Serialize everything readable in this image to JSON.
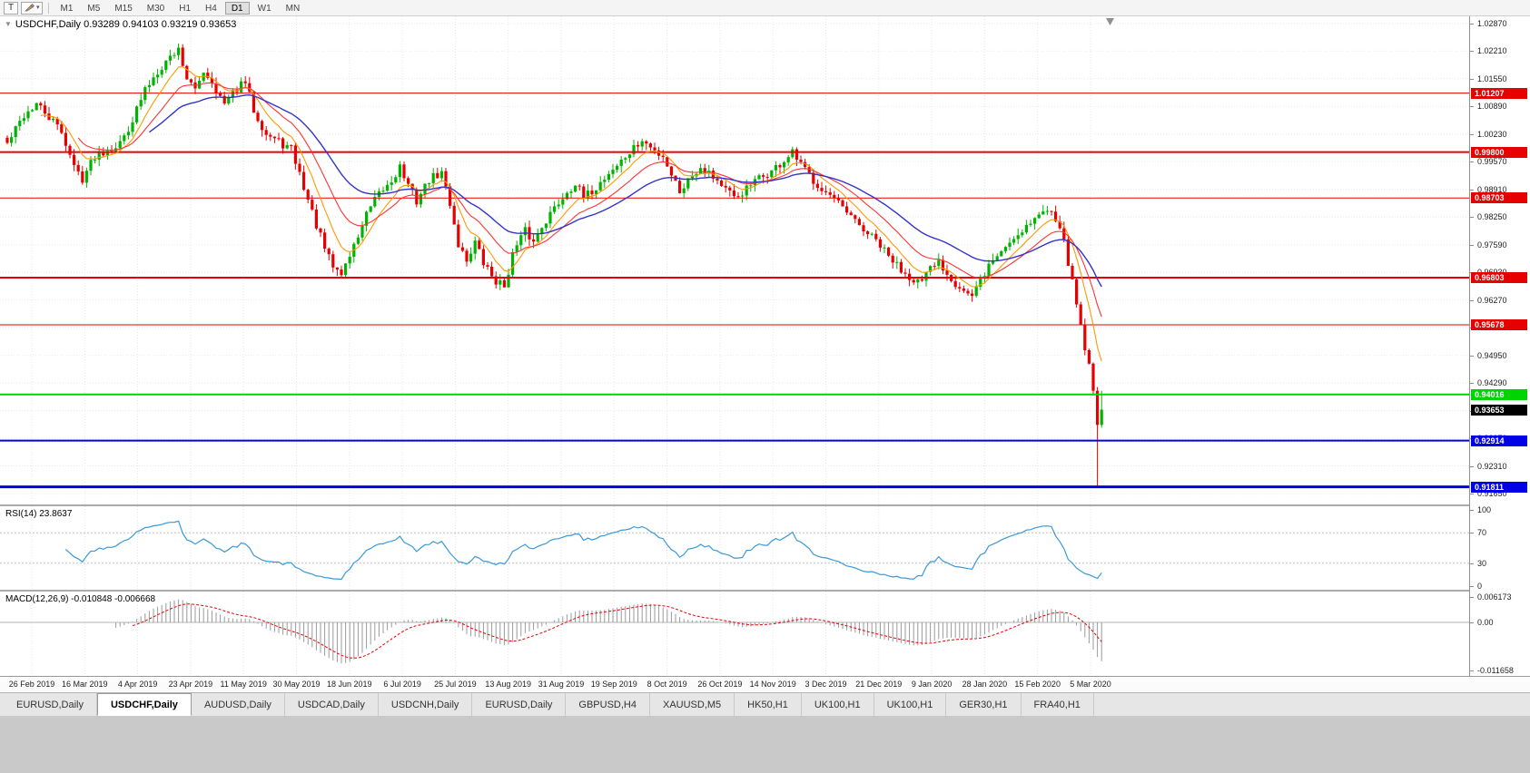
{
  "toolbar": {
    "text_tool": "T",
    "timeframes": [
      "M1",
      "M5",
      "M15",
      "M30",
      "H1",
      "H4",
      "D1",
      "W1",
      "MN"
    ],
    "active_timeframe": "D1"
  },
  "chart": {
    "collapse_arrow": "▼",
    "symbol": "USDCHF",
    "period": "Daily",
    "title_full": "USDCHF,Daily 0.93289 0.94103 0.93219 0.93653",
    "ohlc": {
      "open": "0.93289",
      "high": "0.94103",
      "low": "0.93219",
      "close": "0.93653"
    }
  },
  "chart_data": {
    "type": "candlestick",
    "symbol": "USDCHF",
    "timeframe": "Daily",
    "visible_price_range": {
      "min": 0.9139,
      "max": 1.0304
    },
    "price_axis_ticks": [
      "1.02870",
      "1.02210",
      "1.01550",
      "1.00890",
      "1.00230",
      "0.99570",
      "0.98910",
      "0.98250",
      "0.97590",
      "0.96930",
      "0.96270",
      "0.95610",
      "0.94950",
      "0.94290",
      "0.93630",
      "0.92970",
      "0.92310",
      "0.91650"
    ],
    "date_labels": [
      "26 Feb 2019",
      "16 Mar 2019",
      "4 Apr 2019",
      "23 Apr 2019",
      "11 May 2019",
      "30 May 2019",
      "18 Jun 2019",
      "6 Jul 2019",
      "25 Jul 2019",
      "13 Aug 2019",
      "31 Aug 2019",
      "19 Sep 2019",
      "8 Oct 2019",
      "26 Oct 2019",
      "14 Nov 2019",
      "3 Dec 2019",
      "21 Dec 2019",
      "9 Jan 2020",
      "28 Jan 2020",
      "15 Feb 2020",
      "5 Mar 2020"
    ],
    "num_candles": 263,
    "last_candle": {
      "open": 0.93289,
      "high": 0.94103,
      "low": 0.93219,
      "close": 0.93653
    },
    "crash_low": 0.91811,
    "close_waypoints": [
      [
        0,
        1.0
      ],
      [
        4,
        1.0068
      ],
      [
        7,
        1.0094
      ],
      [
        10,
        1.0062
      ],
      [
        13,
        1.003
      ],
      [
        16,
        0.9945
      ],
      [
        18,
        0.9918
      ],
      [
        21,
        0.9972
      ],
      [
        24,
        0.9988
      ],
      [
        27,
        1.0
      ],
      [
        30,
        1.0058
      ],
      [
        33,
        1.0128
      ],
      [
        36,
        1.0175
      ],
      [
        39,
        1.0208
      ],
      [
        41,
        1.0226
      ],
      [
        43,
        1.0158
      ],
      [
        45,
        1.0124
      ],
      [
        47,
        1.0176
      ],
      [
        49,
        1.0148
      ],
      [
        52,
        1.0092
      ],
      [
        55,
        1.0132
      ],
      [
        57,
        1.0146
      ],
      [
        59,
        1.0082
      ],
      [
        62,
        1.0024
      ],
      [
        65,
        1.0004
      ],
      [
        68,
        0.9986
      ],
      [
        70,
        0.9928
      ],
      [
        72,
        0.9866
      ],
      [
        74,
        0.9806
      ],
      [
        76,
        0.9748
      ],
      [
        78,
        0.9706
      ],
      [
        80,
        0.969
      ],
      [
        83,
        0.9756
      ],
      [
        86,
        0.983
      ],
      [
        89,
        0.9878
      ],
      [
        92,
        0.9912
      ],
      [
        94,
        0.9946
      ],
      [
        96,
        0.9898
      ],
      [
        98,
        0.9864
      ],
      [
        101,
        0.9914
      ],
      [
        104,
        0.993
      ],
      [
        106,
        0.9858
      ],
      [
        108,
        0.976
      ],
      [
        110,
        0.9722
      ],
      [
        112,
        0.9766
      ],
      [
        114,
        0.9714
      ],
      [
        117,
        0.9672
      ],
      [
        119,
        0.966
      ],
      [
        121,
        0.9736
      ],
      [
        124,
        0.9792
      ],
      [
        126,
        0.9764
      ],
      [
        128,
        0.9806
      ],
      [
        131,
        0.9846
      ],
      [
        134,
        0.9886
      ],
      [
        136,
        0.9906
      ],
      [
        138,
        0.9868
      ],
      [
        141,
        0.9896
      ],
      [
        144,
        0.993
      ],
      [
        147,
        0.9958
      ],
      [
        150,
        0.9988
      ],
      [
        152,
        1.0006
      ],
      [
        155,
        0.9982
      ],
      [
        157,
        0.9972
      ],
      [
        159,
        0.9928
      ],
      [
        161,
        0.9888
      ],
      [
        164,
        0.9926
      ],
      [
        166,
        0.9946
      ],
      [
        168,
        0.9934
      ],
      [
        171,
        0.9902
      ],
      [
        174,
        0.9868
      ],
      [
        177,
        0.9892
      ],
      [
        180,
        0.9916
      ],
      [
        183,
        0.9934
      ],
      [
        186,
        0.9958
      ],
      [
        188,
        0.9976
      ],
      [
        190,
        0.9948
      ],
      [
        193,
        0.9914
      ],
      [
        196,
        0.9884
      ],
      [
        199,
        0.9854
      ],
      [
        202,
        0.9822
      ],
      [
        205,
        0.9794
      ],
      [
        208,
        0.9768
      ],
      [
        211,
        0.973
      ],
      [
        214,
        0.97
      ],
      [
        217,
        0.9678
      ],
      [
        219,
        0.9668
      ],
      [
        221,
        0.97
      ],
      [
        223,
        0.9718
      ],
      [
        225,
        0.9692
      ],
      [
        227,
        0.9668
      ],
      [
        229,
        0.965
      ],
      [
        231,
        0.9632
      ],
      [
        233,
        0.9672
      ],
      [
        235,
        0.971
      ],
      [
        238,
        0.9744
      ],
      [
        241,
        0.9776
      ],
      [
        244,
        0.9806
      ],
      [
        247,
        0.983
      ],
      [
        250,
        0.9846
      ],
      [
        252,
        0.9806
      ],
      [
        254,
        0.9718
      ],
      [
        256,
        0.9618
      ],
      [
        258,
        0.9516
      ],
      [
        260,
        0.942
      ],
      [
        261,
        0.93289
      ],
      [
        262,
        0.93653
      ]
    ],
    "candle_colors": {
      "up": "#00b300",
      "down": "#e60000"
    },
    "moving_averages": [
      {
        "name": "fast-ma",
        "period": 8,
        "color": "#ff9900"
      },
      {
        "name": "medium-ma",
        "period": 17,
        "color": "#ff3333"
      },
      {
        "name": "slow-ma",
        "period": 34,
        "color": "#3333cc"
      }
    ],
    "horizontal_lines": [
      {
        "price": 1.01207,
        "label": "1.01207",
        "color": "#e60000",
        "width": 1
      },
      {
        "price": 0.998,
        "label": "0.99800",
        "color": "#e60000",
        "width": 2
      },
      {
        "price": 0.98703,
        "label": "0.98703",
        "color": "#e60000",
        "width": 1
      },
      {
        "price": 0.96803,
        "label": "0.96803",
        "color": "#e60000",
        "width": 2
      },
      {
        "price": 0.95678,
        "label": "0.95678",
        "color": "#e60000",
        "width": 1
      },
      {
        "price": 0.94016,
        "label": "0.94016",
        "color": "#00d400",
        "width": 2
      },
      {
        "price": 0.92914,
        "label": "0.92914",
        "color": "#0000e6",
        "width": 2
      },
      {
        "price": 0.91811,
        "label": "0.91811",
        "color": "#0000e6",
        "width": 3
      }
    ],
    "current_price": {
      "value": 0.93653,
      "label": "0.93653",
      "color": "#000000"
    },
    "rsi": {
      "label": "RSI(14) 23.8637",
      "period": 14,
      "current": 23.8637,
      "levels": [
        "100",
        "70",
        "30",
        "0"
      ],
      "level_values": [
        100,
        70,
        30,
        0
      ],
      "overbought": 70,
      "oversold": 30,
      "color": "#3a99d8"
    },
    "macd": {
      "label": "MACD(12,26,9) -0.010848 -0.006668",
      "fast": 12,
      "slow": 26,
      "signal": 9,
      "macd_value": -0.010848,
      "signal_value": -0.006668,
      "scale_max": 0.006173,
      "scale_min": -0.011658,
      "scale_labels": [
        "0.006173",
        "0.00",
        "-0.011658"
      ],
      "histogram_color": "#9a9a9a",
      "signal_color": "#e60000"
    }
  },
  "tabs": {
    "items": [
      "EURUSD,Daily",
      "USDCHF,Daily",
      "AUDUSD,Daily",
      "USDCAD,Daily",
      "USDCNH,Daily",
      "EURUSD,Daily",
      "GBPUSD,H4",
      "XAUUSD,M5",
      "HK50,H1",
      "UK100,H1",
      "UK100,H1",
      "GER30,H1",
      "FRA40,H1"
    ],
    "active_index": 1
  }
}
